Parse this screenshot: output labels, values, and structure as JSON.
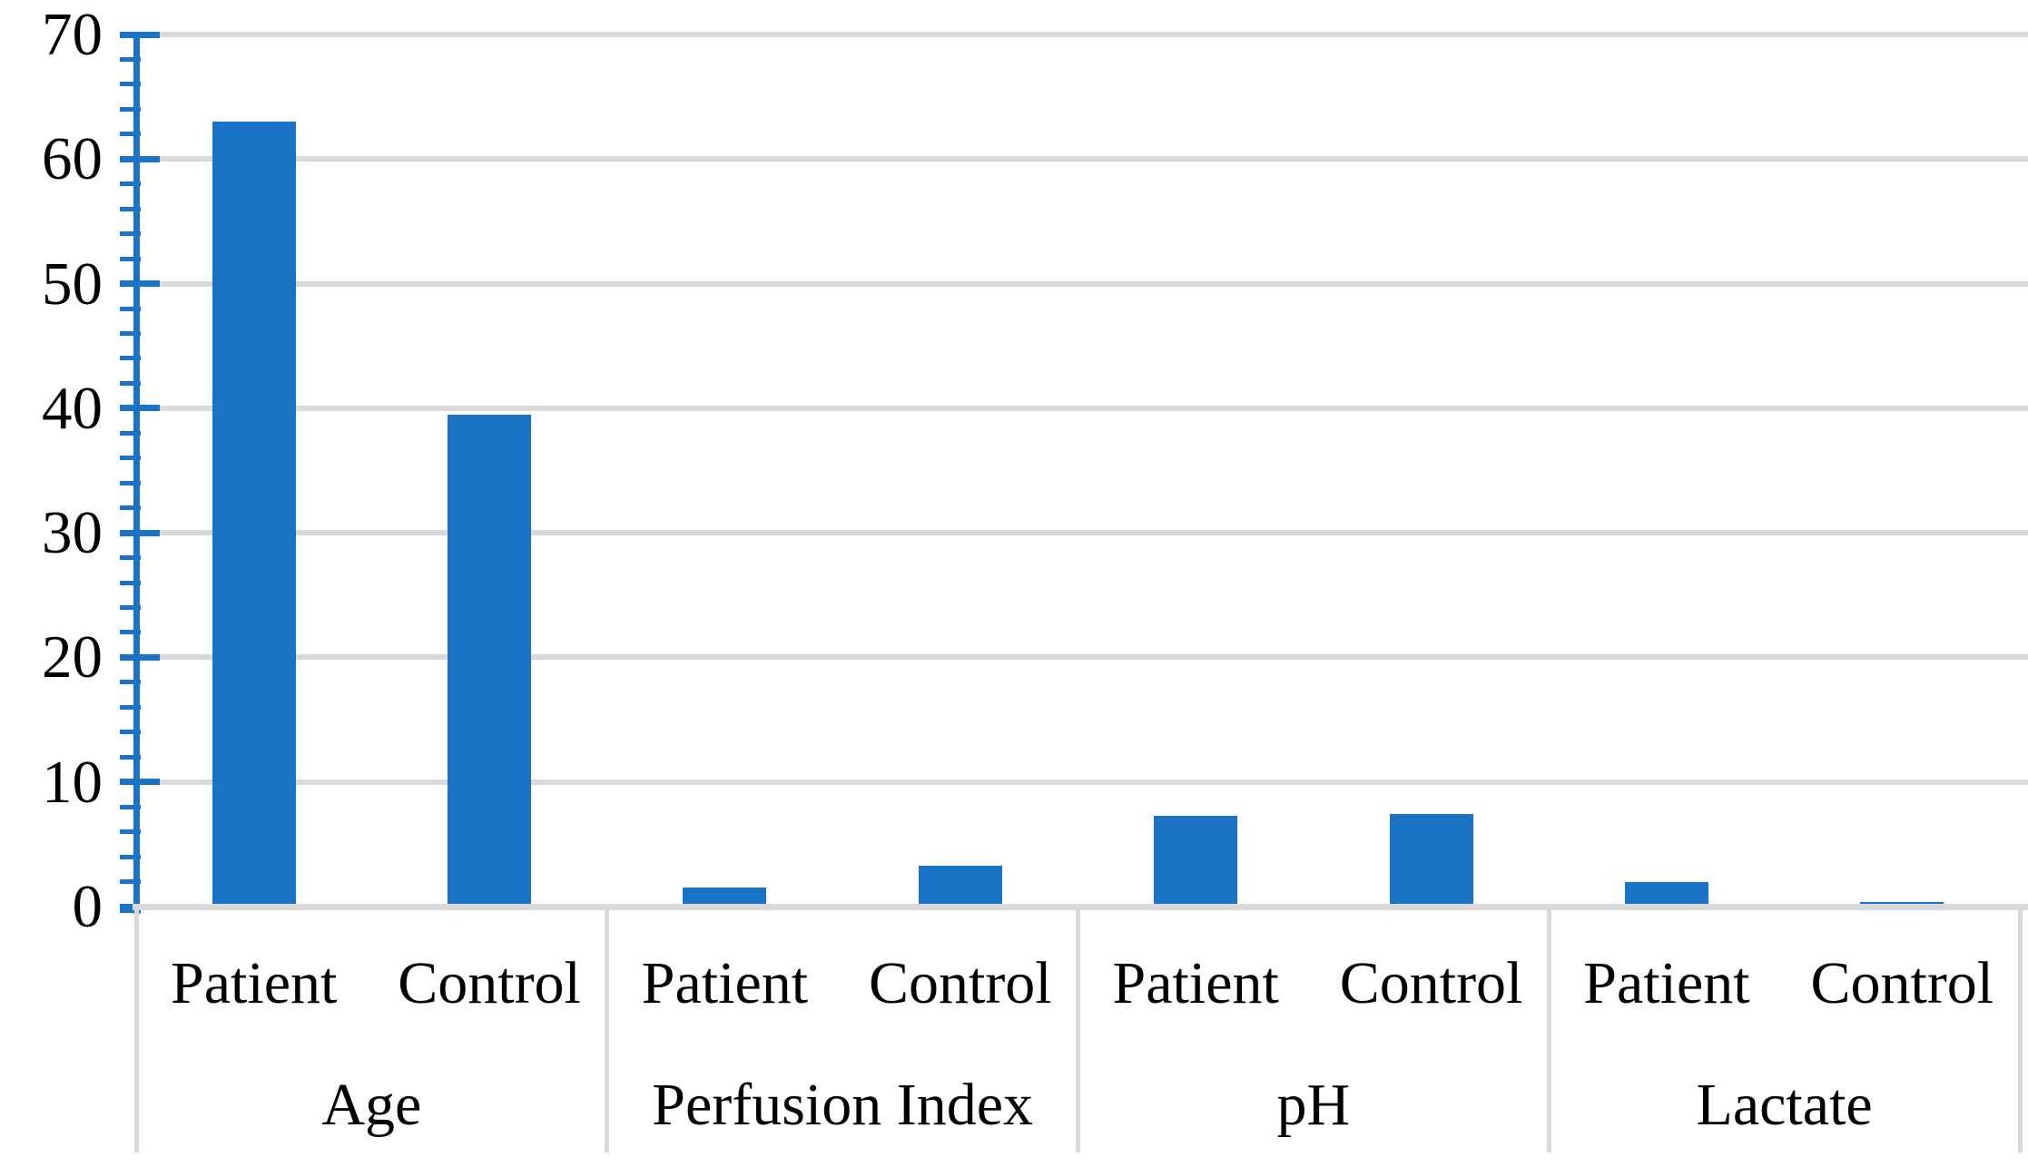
{
  "chart_data": {
    "type": "bar",
    "title": "",
    "legend": "none",
    "grid": true,
    "background": "#FFFFFF",
    "y_axis": {
      "min": 0,
      "max": 70,
      "major_step": 10,
      "minor_step": 2,
      "tick_labels": [
        "0",
        "10",
        "20",
        "30",
        "40",
        "50",
        "60",
        "70"
      ]
    },
    "x_axis": {
      "group_labels": [
        "Age",
        "Perfusion Index",
        "pH",
        "Lactate"
      ],
      "bar_labels": [
        "Patient",
        "Control"
      ]
    },
    "groups": [
      {
        "label": "Age",
        "bars": [
          {
            "label": "Patient",
            "value": 63
          },
          {
            "label": "Control",
            "value": 39.5
          }
        ]
      },
      {
        "label": "Perfusion Index",
        "bars": [
          {
            "label": "Patient",
            "value": 1.5
          },
          {
            "label": "Control",
            "value": 3.3
          }
        ]
      },
      {
        "label": "pH",
        "bars": [
          {
            "label": "Patient",
            "value": 7.3
          },
          {
            "label": "Control",
            "value": 7.4
          }
        ]
      },
      {
        "label": "Lactate",
        "bars": [
          {
            "label": "Patient",
            "value": 2
          },
          {
            "label": "Control",
            "value": 0.4
          }
        ]
      }
    ],
    "colors": {
      "bar": "#1B73C5",
      "y_axis": "#1B73C5",
      "gridline": "#D9D9D9",
      "x_axis_line": "#D9D9D9",
      "divider": "#D9D9D9",
      "text": "#000000"
    }
  }
}
